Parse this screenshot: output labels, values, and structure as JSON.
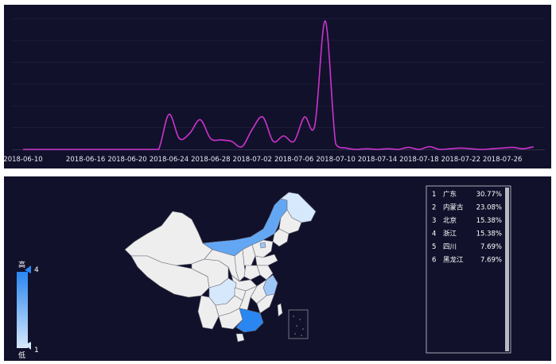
{
  "line_chart": {
    "colors": {
      "background": "#11112b",
      "line": "#cc33cc",
      "grid": "#232342",
      "text": "#e8e8f0"
    }
  },
  "map": {
    "visual_map": {
      "max_label": "4",
      "min_label": "1",
      "high_text": "高",
      "low_text": "低",
      "color_high": "#2a86f0",
      "color_low": "#d6e8fb",
      "color_zero": "#eeeeee"
    },
    "ranking": [
      {
        "rank": "1",
        "name": "广东",
        "percent": "30.77%"
      },
      {
        "rank": "2",
        "name": "内蒙古",
        "percent": "23.08%"
      },
      {
        "rank": "3",
        "name": "北京",
        "percent": "15.38%"
      },
      {
        "rank": "4",
        "name": "浙江",
        "percent": "15.38%"
      },
      {
        "rank": "5",
        "name": "四川",
        "percent": "7.69%"
      },
      {
        "rank": "6",
        "name": "黑龙江",
        "percent": "7.69%"
      }
    ]
  },
  "chart_data": [
    {
      "type": "line",
      "x": [
        "2018-06-10",
        "2018-06-11",
        "2018-06-12",
        "2018-06-13",
        "2018-06-14",
        "2018-06-15",
        "2018-06-16",
        "2018-06-17",
        "2018-06-18",
        "2018-06-19",
        "2018-06-20",
        "2018-06-21",
        "2018-06-22",
        "2018-06-23",
        "2018-06-24",
        "2018-06-25",
        "2018-06-26",
        "2018-06-27",
        "2018-06-28",
        "2018-06-29",
        "2018-06-30",
        "2018-07-01",
        "2018-07-02",
        "2018-07-03",
        "2018-07-04",
        "2018-07-05",
        "2018-07-06",
        "2018-07-07",
        "2018-07-08",
        "2018-07-09",
        "2018-07-10",
        "2018-07-11",
        "2018-07-12",
        "2018-07-13",
        "2018-07-14",
        "2018-07-15",
        "2018-07-16",
        "2018-07-17",
        "2018-07-18",
        "2018-07-19",
        "2018-07-20",
        "2018-07-21",
        "2018-07-22",
        "2018-07-23",
        "2018-07-24",
        "2018-07-25",
        "2018-07-26",
        "2018-07-27",
        "2018-07-28",
        "2018-07-29"
      ],
      "x_tick_labels": [
        "2018-06-10",
        "2018-06-16",
        "2018-06-20",
        "2018-06-24",
        "2018-06-28",
        "2018-07-02",
        "2018-07-06",
        "2018-07-10",
        "2018-07-14",
        "2018-07-18",
        "2018-07-22",
        "2018-07-26"
      ],
      "series": [
        {
          "values": [
            0,
            0,
            0,
            0,
            0,
            0,
            0,
            0,
            0,
            0,
            0,
            0,
            0,
            0,
            0.26,
            0.08,
            0.12,
            0.22,
            0.08,
            0.07,
            0.06,
            0.02,
            0.15,
            0.24,
            0.06,
            0.1,
            0.06,
            0.24,
            0.18,
            0.95,
            0.04,
            0.01,
            0,
            0.005,
            0,
            0.005,
            0,
            0.015,
            0,
            0.02,
            0,
            0.005,
            0.01,
            0.005,
            0,
            0.005,
            0.01,
            0.015,
            0.005,
            0.02
          ]
        }
      ],
      "ylim": [
        0,
        1
      ],
      "grid": true
    },
    {
      "type": "choropleth-map",
      "regions": [
        {
          "name": "广东",
          "value": 4
        },
        {
          "name": "内蒙古",
          "value": 3
        },
        {
          "name": "北京",
          "value": 2
        },
        {
          "name": "浙江",
          "value": 2
        },
        {
          "name": "四川",
          "value": 1
        },
        {
          "name": "黑龙江",
          "value": 1
        }
      ],
      "value_range": [
        1,
        4
      ]
    }
  ]
}
